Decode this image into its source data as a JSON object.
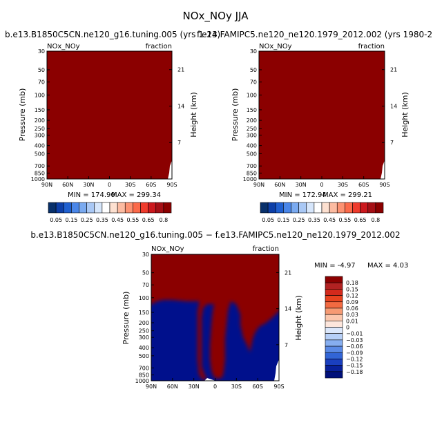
{
  "figure": {
    "title": "NOx_NOy JJA",
    "diff_title": "b.e13.B1850C5CN.ne120_g16.tuning.005 − f.e13.FAMIPC5.ne120_ne120.1979_2012.002"
  },
  "chart_data": [
    {
      "type": "heatmap",
      "panel": "left",
      "title": "b.e13.B1850C5CN.ne120_g16.tuning.005 (yrs 1-24)",
      "field_label": "NOx_NOy",
      "units_label": "fraction",
      "ylabel": "Pressure (mb)",
      "y2label": "Height (km)",
      "x_ticks": [
        "90N",
        "60N",
        "30N",
        "0",
        "30S",
        "60S",
        "90S"
      ],
      "y_ticks": [
        "30",
        "50",
        "70",
        "100",
        "150",
        "200",
        "250",
        "300",
        "400",
        "500",
        "700",
        "850",
        "1000"
      ],
      "y2_ticks": [
        "21",
        "14",
        "7"
      ],
      "min_text": "MIN = 174.90",
      "max_text": "MAX = 299.34",
      "min": 174.9,
      "max": 299.34,
      "colorbar_labels": [
        "0.05",
        "0.15",
        "0.25",
        "0.35",
        "0.45",
        "0.55",
        "0.65",
        "0.8"
      ]
    },
    {
      "type": "heatmap",
      "panel": "right",
      "title": "f.e13.FAMIPC5.ne120_ne120.1979_2012.002 (yrs 1980-2",
      "field_label": "NOx_NOy",
      "units_label": "fraction",
      "ylabel": "Pressure (mb)",
      "y2label": "Height (km)",
      "x_ticks": [
        "90N",
        "60N",
        "30N",
        "0",
        "30S",
        "60S",
        "90S"
      ],
      "y_ticks": [
        "30",
        "50",
        "70",
        "100",
        "150",
        "200",
        "250",
        "300",
        "400",
        "500",
        "700",
        "850",
        "1000"
      ],
      "y2_ticks": [
        "21",
        "14",
        "7"
      ],
      "min_text": "MIN = 172.94",
      "max_text": "MAX = 299.21",
      "min": 172.94,
      "max": 299.21,
      "colorbar_labels": [
        "0.05",
        "0.15",
        "0.25",
        "0.35",
        "0.45",
        "0.55",
        "0.65",
        "0.8"
      ]
    },
    {
      "type": "heatmap",
      "panel": "difference",
      "field_label": "NOx_NOy",
      "units_label": "fraction",
      "ylabel": "Pressure (mb)",
      "y2label": "Height (km)",
      "x_ticks": [
        "90N",
        "60N",
        "30N",
        "0",
        "30S",
        "60S",
        "90S"
      ],
      "y_ticks": [
        "30",
        "50",
        "70",
        "100",
        "150",
        "200",
        "250",
        "300",
        "400",
        "500",
        "700",
        "850",
        "1000"
      ],
      "y2_ticks": [
        "21",
        "14",
        "7"
      ],
      "min_text": "MIN =   -4.97",
      "max_text": "MAX =    4.03",
      "min": -4.97,
      "max": 4.03,
      "colorbar_labels": [
        "0.18",
        "0.15",
        "0.12",
        "0.09",
        "0.06",
        "0.03",
        "0.01",
        "0",
        "-0.01",
        "-0.03",
        "-0.06",
        "-0.09",
        "-0.12",
        "-0.15",
        "-0.18"
      ]
    }
  ],
  "colors": {
    "field_fill": "#8b0000",
    "field_bar": [
      "#08306b",
      "#0d3fa8",
      "#2060d0",
      "#4a86e8",
      "#7aaaf0",
      "#a9c8f5",
      "#d6e6fb",
      "#ffffff",
      "#fde0d0",
      "#fcbba1",
      "#fc9272",
      "#fb6a4a",
      "#ef3b2c",
      "#cb181d",
      "#a50f15",
      "#8b0000"
    ],
    "diff_bar": [
      "#8b0000",
      "#b22222",
      "#d42a1c",
      "#e8431f",
      "#f26a41",
      "#f69a73",
      "#fbc7ad",
      "#fde6dc",
      "#dbe7fb",
      "#b6cff7",
      "#86aef0",
      "#5a8ae6",
      "#3265d6",
      "#1a3fbf",
      "#08209a",
      "#00107a"
    ],
    "diff_neg": "#00108c",
    "diff_pos": "#8b0000"
  }
}
